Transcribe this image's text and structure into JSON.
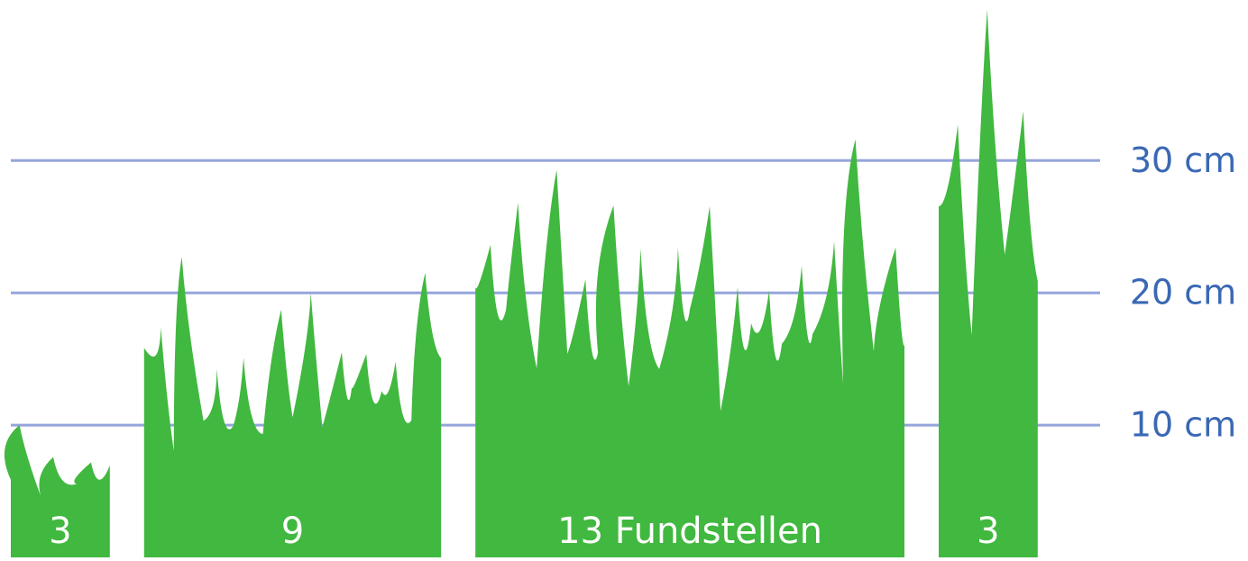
{
  "chart_data": {
    "type": "grass",
    "categories": [
      "3",
      "9",
      "13 Fundstellen",
      "3"
    ],
    "counts": [
      3,
      9,
      13,
      3
    ],
    "values": [
      10,
      22.7,
      31.6,
      41.4
    ],
    "color": "#41b83f",
    "ylim": [
      0,
      42
    ],
    "yticks": [
      {
        "value": 10,
        "label": "10 cm"
      },
      {
        "value": 20,
        "label": "20 cm"
      },
      {
        "value": 30,
        "label": "30 cm"
      }
    ],
    "grid": true,
    "grid_color": "#95a5dc",
    "tick_color": "#3a68b4"
  }
}
